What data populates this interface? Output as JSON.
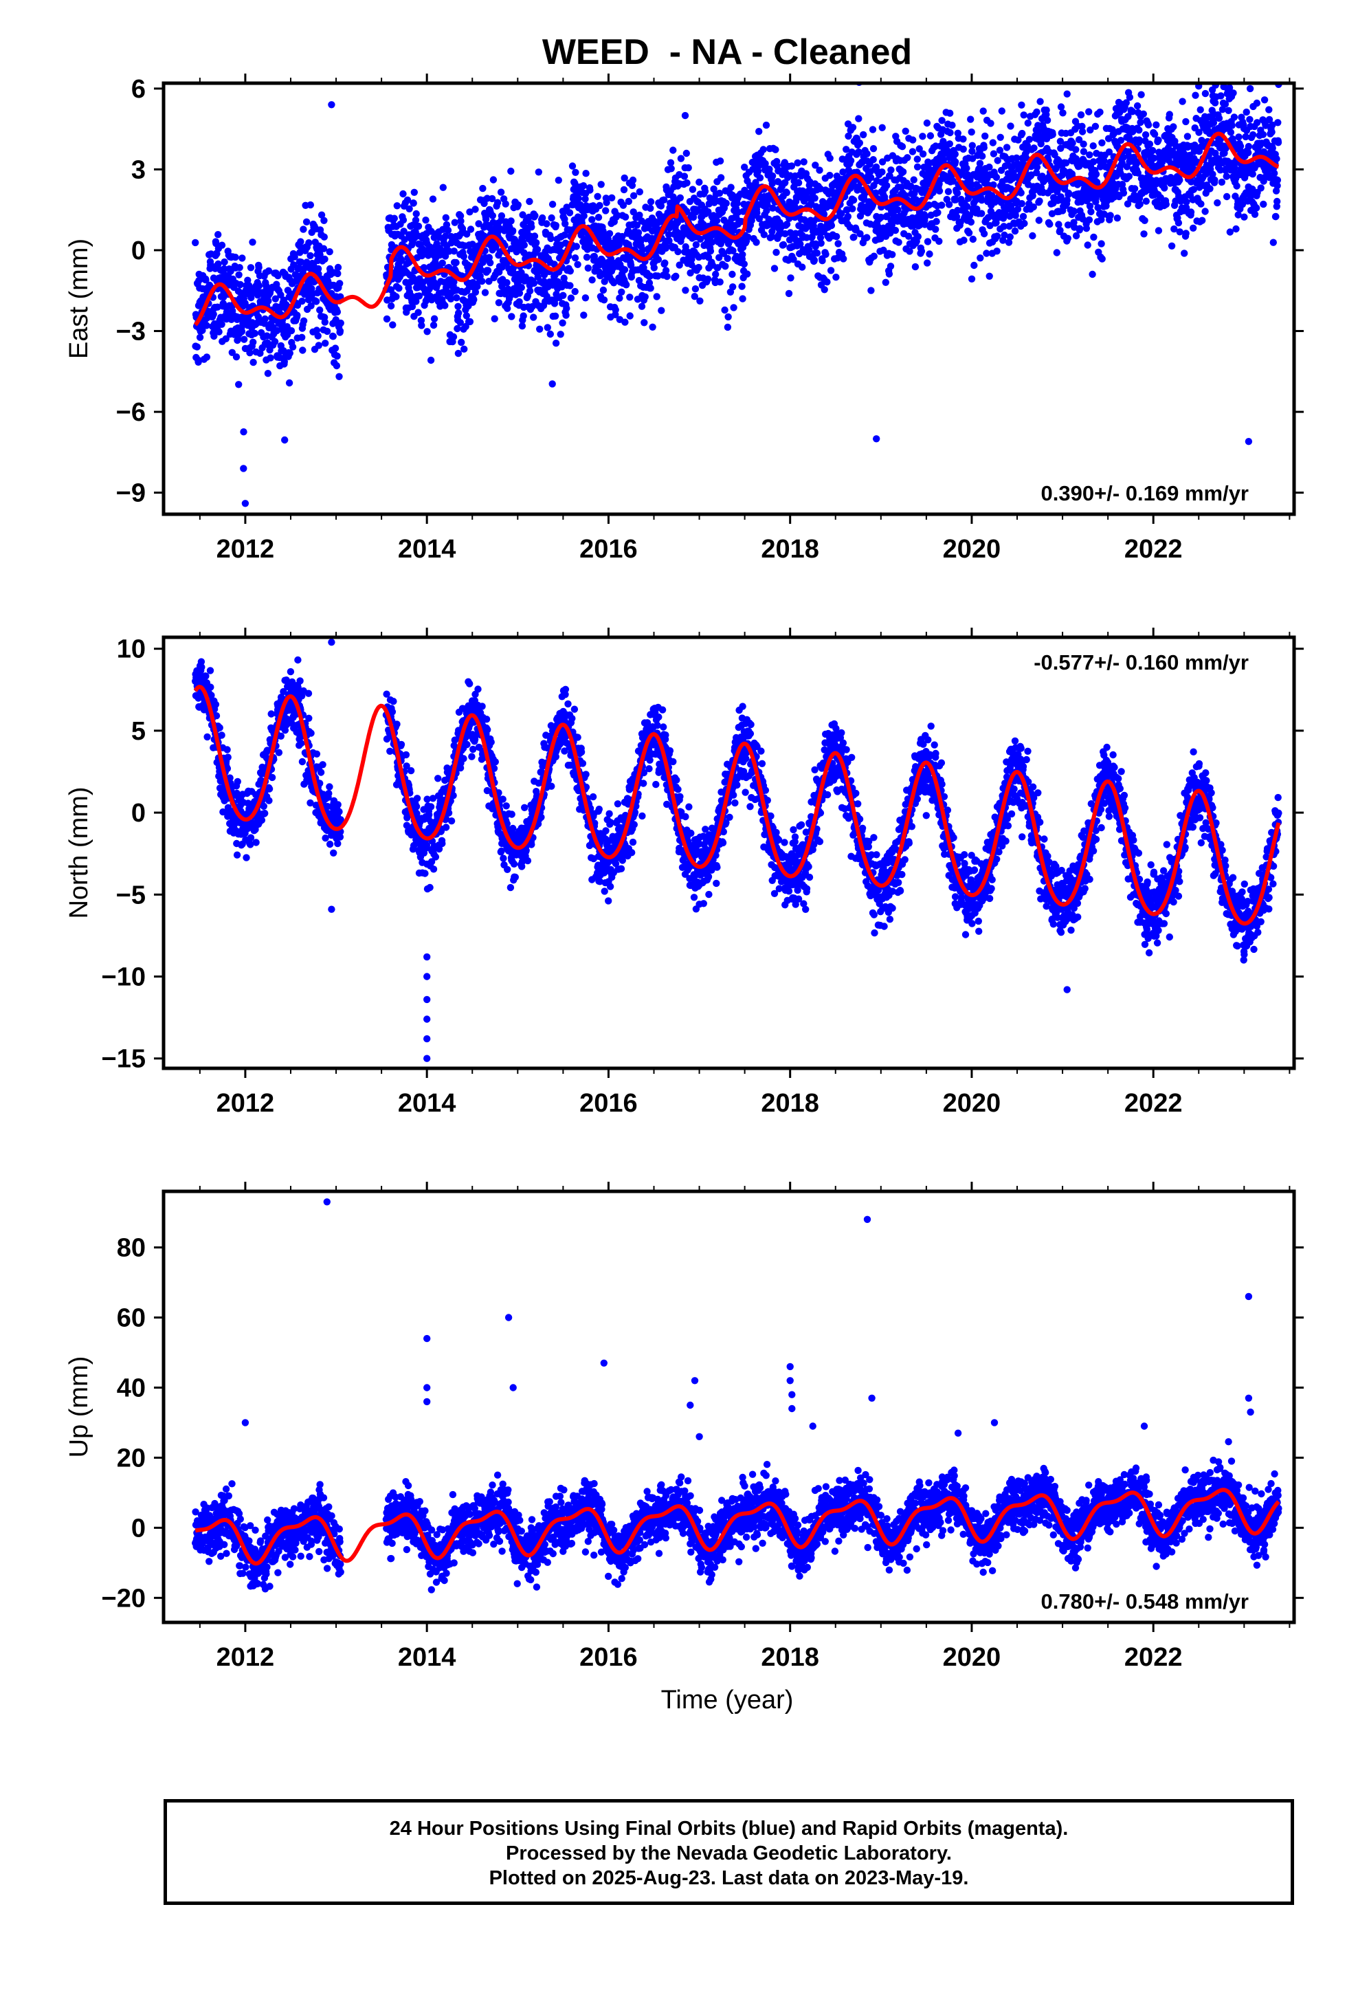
{
  "title": "WEED  - NA - Cleaned",
  "xlabel": "Time (year)",
  "footer": {
    "line1": "24 Hour Positions Using Final Orbits (blue) and Rapid Orbits (magenta).",
    "line2": "Processed by the Nevada Geodetic Laboratory.",
    "line3": "Plotted on 2025-Aug-23. Last data on 2023-May-19."
  },
  "colors": {
    "points": "#0000ff",
    "model": "#ff0000",
    "frame": "#000000"
  },
  "chart_data": [
    {
      "type": "scatter",
      "ylabel": "East (mm)",
      "rate_label": "0.390+/- 0.169 mm/yr",
      "rate_position": "bottom-right",
      "xlim": [
        2011.1,
        2023.55
      ],
      "ylim": [
        -9.8,
        6.2
      ],
      "yticks": [
        -9,
        -6,
        -3,
        0,
        3,
        6
      ],
      "xticks": [
        2012,
        2014,
        2016,
        2018,
        2020,
        2022
      ],
      "data_range": [
        2011.45,
        2023.38
      ],
      "gap": [
        2013.05,
        2013.55
      ],
      "model": {
        "t0": 2011.45,
        "offset": -2.25,
        "rate": 0.39,
        "annual_amp": 0.55,
        "annual_peak": 2011.75,
        "semiannual_amp": 0.35,
        "semiannual_peak": 2011.7,
        "offsets": [
          [
            2013.6,
            0.6
          ],
          [
            2016.75,
            0.4
          ],
          [
            2017.5,
            0.3
          ]
        ]
      },
      "scatter_sigma": 1.1,
      "outliers": [
        [
          2012.0,
          -9.4
        ],
        [
          2011.98,
          -8.1
        ],
        [
          2012.95,
          5.4
        ],
        [
          2021.05,
          5.8
        ],
        [
          2018.95,
          -7.0
        ],
        [
          2023.05,
          -7.1
        ]
      ]
    },
    {
      "type": "scatter",
      "ylabel": "North (mm)",
      "rate_label": "-0.577+/- 0.160 mm/yr",
      "rate_position": "top-right",
      "xlim": [
        2011.1,
        2023.55
      ],
      "ylim": [
        -15.6,
        10.7
      ],
      "yticks": [
        -15,
        -10,
        -5,
        0,
        5,
        10
      ],
      "xticks": [
        2012,
        2014,
        2016,
        2018,
        2020,
        2022
      ],
      "data_range": [
        2011.45,
        2023.38
      ],
      "gap": [
        2013.05,
        2013.55
      ],
      "model": {
        "t0": 2011.45,
        "offset": 3.4,
        "rate": -0.577,
        "annual_amp": 3.9,
        "annual_peak": 2011.5,
        "semiannual_amp": 0.4,
        "semiannual_peak": 2011.5,
        "offsets": []
      },
      "scatter_sigma": 1.0,
      "outliers": [
        [
          2012.95,
          10.4
        ],
        [
          2014.0,
          -8.8
        ],
        [
          2014.0,
          -10.0
        ],
        [
          2014.0,
          -11.4
        ],
        [
          2014.0,
          -12.6
        ],
        [
          2014.0,
          -13.8
        ],
        [
          2014.0,
          -15.0
        ],
        [
          2021.05,
          -10.8
        ],
        [
          2012.95,
          -5.9
        ]
      ]
    },
    {
      "type": "scatter",
      "ylabel": "Up (mm)",
      "rate_label": "0.780+/- 0.548 mm/yr",
      "rate_position": "bottom-right",
      "xlim": [
        2011.1,
        2023.55
      ],
      "ylim": [
        -27,
        96
      ],
      "yticks": [
        -20,
        0,
        20,
        40,
        60,
        80
      ],
      "xticks": [
        2012,
        2014,
        2016,
        2018,
        2020,
        2022
      ],
      "data_range": [
        2011.45,
        2023.38
      ],
      "gap": [
        2013.05,
        2013.55
      ],
      "model": {
        "t0": 2011.45,
        "offset": -3.2,
        "rate": 0.78,
        "annual_amp": 5.5,
        "annual_peak": 2011.65,
        "semiannual_amp": 2.2,
        "semiannual_peak": 2011.85,
        "offsets": []
      },
      "scatter_sigma": 3.8,
      "outliers": [
        [
          2012.9,
          93
        ],
        [
          2018.85,
          88
        ],
        [
          2014.0,
          54
        ],
        [
          2014.9,
          60
        ],
        [
          2014.95,
          40
        ],
        [
          2015.95,
          47
        ],
        [
          2016.95,
          42
        ],
        [
          2018.0,
          46
        ],
        [
          2018.0,
          42
        ],
        [
          2018.02,
          38
        ],
        [
          2018.02,
          34
        ],
        [
          2018.25,
          29
        ],
        [
          2018.9,
          37
        ],
        [
          2019.85,
          27
        ],
        [
          2020.25,
          30
        ],
        [
          2023.05,
          66
        ],
        [
          2023.05,
          37
        ],
        [
          2023.07,
          33
        ],
        [
          2014.0,
          40
        ],
        [
          2014.0,
          36
        ],
        [
          2016.9,
          35
        ],
        [
          2017.0,
          26
        ],
        [
          2012.0,
          30
        ],
        [
          2021.9,
          29
        ]
      ]
    }
  ]
}
